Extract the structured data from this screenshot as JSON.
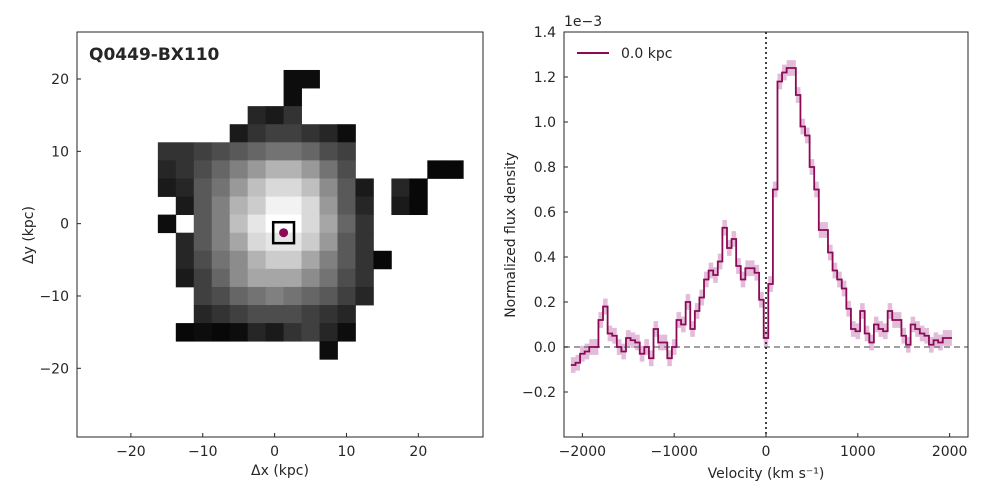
{
  "colors": {
    "accent": "#8a0a55",
    "band": "#d9a5cc",
    "zero_line": "#808080",
    "axis": "#262626"
  },
  "chart_data": [
    {
      "type": "heatmap",
      "title": "Q0449-BX110",
      "xlabel": "Δx (kpc)",
      "ylabel": "Δy (kpc)",
      "xlim": [
        -27.5,
        29
      ],
      "ylim": [
        -29.5,
        26.5
      ],
      "xticks": [
        -20,
        -10,
        0,
        10,
        20
      ],
      "yticks": [
        -20,
        -10,
        0,
        10,
        20
      ],
      "xtick_labels": [
        "−20",
        "−10",
        "0",
        "10",
        "20"
      ],
      "ytick_labels": [
        "−20",
        "−10",
        "0",
        "10",
        "20"
      ],
      "pixel_size_kpc": 2.5,
      "colormap": "gray",
      "cells": [
        {
          "x": 2.5,
          "y": 20,
          "v": 0.05
        },
        {
          "x": 5,
          "y": 20,
          "v": 0.05
        },
        {
          "x": 2.5,
          "y": 17.5,
          "v": 0.05
        },
        {
          "x": -2.5,
          "y": 15,
          "v": 0.15
        },
        {
          "x": 0,
          "y": 15,
          "v": 0.1
        },
        {
          "x": 2.5,
          "y": 15,
          "v": 0.2
        },
        {
          "x": -5,
          "y": 12.5,
          "v": 0.1
        },
        {
          "x": -2.5,
          "y": 12.5,
          "v": 0.2
        },
        {
          "x": 0,
          "y": 12.5,
          "v": 0.25
        },
        {
          "x": 2.5,
          "y": 12.5,
          "v": 0.25
        },
        {
          "x": 5,
          "y": 12.5,
          "v": 0.2
        },
        {
          "x": 7.5,
          "y": 12.5,
          "v": 0.15
        },
        {
          "x": 10,
          "y": 12.5,
          "v": 0.05
        },
        {
          "x": -15,
          "y": 10,
          "v": 0.2
        },
        {
          "x": -12.5,
          "y": 10,
          "v": 0.2
        },
        {
          "x": -10,
          "y": 10,
          "v": 0.25
        },
        {
          "x": -7.5,
          "y": 10,
          "v": 0.3
        },
        {
          "x": -5,
          "y": 10,
          "v": 0.35
        },
        {
          "x": -2.5,
          "y": 10,
          "v": 0.4
        },
        {
          "x": 0,
          "y": 10,
          "v": 0.45
        },
        {
          "x": 2.5,
          "y": 10,
          "v": 0.45
        },
        {
          "x": 5,
          "y": 10,
          "v": 0.4
        },
        {
          "x": 7.5,
          "y": 10,
          "v": 0.3
        },
        {
          "x": 10,
          "y": 10,
          "v": 0.25
        },
        {
          "x": -15,
          "y": 7.5,
          "v": 0.15
        },
        {
          "x": -12.5,
          "y": 7.5,
          "v": 0.2
        },
        {
          "x": -10,
          "y": 7.5,
          "v": 0.3
        },
        {
          "x": -7.5,
          "y": 7.5,
          "v": 0.4
        },
        {
          "x": -5,
          "y": 7.5,
          "v": 0.5
        },
        {
          "x": -2.5,
          "y": 7.5,
          "v": 0.6
        },
        {
          "x": 0,
          "y": 7.5,
          "v": 0.7
        },
        {
          "x": 2.5,
          "y": 7.5,
          "v": 0.7
        },
        {
          "x": 5,
          "y": 7.5,
          "v": 0.6
        },
        {
          "x": 7.5,
          "y": 7.5,
          "v": 0.45
        },
        {
          "x": 10,
          "y": 7.5,
          "v": 0.3
        },
        {
          "x": 22.5,
          "y": 7.5,
          "v": 0.03
        },
        {
          "x": 25,
          "y": 7.5,
          "v": 0.03
        },
        {
          "x": -15,
          "y": 5,
          "v": 0.1
        },
        {
          "x": -12.5,
          "y": 5,
          "v": 0.15
        },
        {
          "x": -10,
          "y": 5,
          "v": 0.35
        },
        {
          "x": -7.5,
          "y": 5,
          "v": 0.45
        },
        {
          "x": -5,
          "y": 5,
          "v": 0.6
        },
        {
          "x": -2.5,
          "y": 5,
          "v": 0.75
        },
        {
          "x": 0,
          "y": 5,
          "v": 0.85
        },
        {
          "x": 2.5,
          "y": 5,
          "v": 0.85
        },
        {
          "x": 5,
          "y": 5,
          "v": 0.75
        },
        {
          "x": 7.5,
          "y": 5,
          "v": 0.55
        },
        {
          "x": 10,
          "y": 5,
          "v": 0.35
        },
        {
          "x": 12.5,
          "y": 5,
          "v": 0.1
        },
        {
          "x": 17.5,
          "y": 5,
          "v": 0.15
        },
        {
          "x": 20,
          "y": 5,
          "v": 0.03
        },
        {
          "x": -12.5,
          "y": 2.5,
          "v": 0.1
        },
        {
          "x": -10,
          "y": 2.5,
          "v": 0.35
        },
        {
          "x": -7.5,
          "y": 2.5,
          "v": 0.5
        },
        {
          "x": -5,
          "y": 2.5,
          "v": 0.7
        },
        {
          "x": -2.5,
          "y": 2.5,
          "v": 0.8
        },
        {
          "x": 0,
          "y": 2.5,
          "v": 0.95
        },
        {
          "x": 2.5,
          "y": 2.5,
          "v": 0.95
        },
        {
          "x": 5,
          "y": 2.5,
          "v": 0.85
        },
        {
          "x": 7.5,
          "y": 2.5,
          "v": 0.6
        },
        {
          "x": 10,
          "y": 2.5,
          "v": 0.35
        },
        {
          "x": 12.5,
          "y": 2.5,
          "v": 0.15
        },
        {
          "x": 17.5,
          "y": 2.5,
          "v": 0.1
        },
        {
          "x": 20,
          "y": 2.5,
          "v": 0.03
        },
        {
          "x": -15,
          "y": 0,
          "v": 0.05
        },
        {
          "x": -10,
          "y": 0,
          "v": 0.35
        },
        {
          "x": -7.5,
          "y": 0,
          "v": 0.5
        },
        {
          "x": -5,
          "y": 0,
          "v": 0.75
        },
        {
          "x": -2.5,
          "y": 0,
          "v": 0.9
        },
        {
          "x": 0,
          "y": 0,
          "v": 1.0
        },
        {
          "x": 2.5,
          "y": 0,
          "v": 1.0
        },
        {
          "x": 5,
          "y": 0,
          "v": 0.85
        },
        {
          "x": 7.5,
          "y": 0,
          "v": 0.65
        },
        {
          "x": 10,
          "y": 0,
          "v": 0.4
        },
        {
          "x": 12.5,
          "y": 0,
          "v": 0.2
        },
        {
          "x": -12.5,
          "y": -2.5,
          "v": 0.15
        },
        {
          "x": -10,
          "y": -2.5,
          "v": 0.35
        },
        {
          "x": -7.5,
          "y": -2.5,
          "v": 0.5
        },
        {
          "x": -5,
          "y": -2.5,
          "v": 0.65
        },
        {
          "x": -2.5,
          "y": -2.5,
          "v": 0.85
        },
        {
          "x": 0,
          "y": -2.5,
          "v": 0.9
        },
        {
          "x": 2.5,
          "y": -2.5,
          "v": 0.9
        },
        {
          "x": 5,
          "y": -2.5,
          "v": 0.8
        },
        {
          "x": 7.5,
          "y": -2.5,
          "v": 0.6
        },
        {
          "x": 10,
          "y": -2.5,
          "v": 0.35
        },
        {
          "x": 12.5,
          "y": -2.5,
          "v": 0.2
        },
        {
          "x": -12.5,
          "y": -5,
          "v": 0.15
        },
        {
          "x": -10,
          "y": -5,
          "v": 0.3
        },
        {
          "x": -7.5,
          "y": -5,
          "v": 0.45
        },
        {
          "x": -5,
          "y": -5,
          "v": 0.55
        },
        {
          "x": -2.5,
          "y": -5,
          "v": 0.7
        },
        {
          "x": 0,
          "y": -5,
          "v": 0.8
        },
        {
          "x": 2.5,
          "y": -5,
          "v": 0.8
        },
        {
          "x": 5,
          "y": -5,
          "v": 0.65
        },
        {
          "x": 7.5,
          "y": -5,
          "v": 0.5
        },
        {
          "x": 10,
          "y": -5,
          "v": 0.35
        },
        {
          "x": 12.5,
          "y": -5,
          "v": 0.2
        },
        {
          "x": 15,
          "y": -5,
          "v": 0.03
        },
        {
          "x": -12.5,
          "y": -7.5,
          "v": 0.1
        },
        {
          "x": -10,
          "y": -7.5,
          "v": 0.25
        },
        {
          "x": -7.5,
          "y": -7.5,
          "v": 0.4
        },
        {
          "x": -5,
          "y": -7.5,
          "v": 0.55
        },
        {
          "x": -2.5,
          "y": -7.5,
          "v": 0.65
        },
        {
          "x": 0,
          "y": -7.5,
          "v": 0.65
        },
        {
          "x": 2.5,
          "y": -7.5,
          "v": 0.65
        },
        {
          "x": 5,
          "y": -7.5,
          "v": 0.55
        },
        {
          "x": 7.5,
          "y": -7.5,
          "v": 0.45
        },
        {
          "x": 10,
          "y": -7.5,
          "v": 0.3
        },
        {
          "x": 12.5,
          "y": -7.5,
          "v": 0.2
        },
        {
          "x": -10,
          "y": -10,
          "v": 0.25
        },
        {
          "x": -7.5,
          "y": -10,
          "v": 0.3
        },
        {
          "x": -5,
          "y": -10,
          "v": 0.4
        },
        {
          "x": -2.5,
          "y": -10,
          "v": 0.45
        },
        {
          "x": 0,
          "y": -10,
          "v": 0.5
        },
        {
          "x": 2.5,
          "y": -10,
          "v": 0.45
        },
        {
          "x": 5,
          "y": -10,
          "v": 0.4
        },
        {
          "x": 7.5,
          "y": -10,
          "v": 0.35
        },
        {
          "x": 10,
          "y": -10,
          "v": 0.25
        },
        {
          "x": 12.5,
          "y": -10,
          "v": 0.15
        },
        {
          "x": -10,
          "y": -12.5,
          "v": 0.15
        },
        {
          "x": -7.5,
          "y": -12.5,
          "v": 0.2
        },
        {
          "x": -5,
          "y": -12.5,
          "v": 0.25
        },
        {
          "x": -2.5,
          "y": -12.5,
          "v": 0.3
        },
        {
          "x": 0,
          "y": -12.5,
          "v": 0.3
        },
        {
          "x": 2.5,
          "y": -12.5,
          "v": 0.3
        },
        {
          "x": 5,
          "y": -12.5,
          "v": 0.25
        },
        {
          "x": 7.5,
          "y": -12.5,
          "v": 0.2
        },
        {
          "x": 10,
          "y": -12.5,
          "v": 0.15
        },
        {
          "x": -12.5,
          "y": -15,
          "v": 0.03
        },
        {
          "x": -10,
          "y": -15,
          "v": 0.05
        },
        {
          "x": -7.5,
          "y": -15,
          "v": 0.03
        },
        {
          "x": -5,
          "y": -15,
          "v": 0.05
        },
        {
          "x": -2.5,
          "y": -15,
          "v": 0.15
        },
        {
          "x": 0,
          "y": -15,
          "v": 0.1
        },
        {
          "x": 2.5,
          "y": -15,
          "v": 0.2
        },
        {
          "x": 5,
          "y": -15,
          "v": 0.25
        },
        {
          "x": 7.5,
          "y": -15,
          "v": 0.15
        },
        {
          "x": 10,
          "y": -15,
          "v": 0.05
        },
        {
          "x": 7.5,
          "y": -17.5,
          "v": 0.05
        }
      ],
      "aperture": {
        "x": 1.25,
        "y": -1.25,
        "half_width": 1.25
      },
      "marker": {
        "x": 1.25,
        "y": -1.25
      }
    },
    {
      "type": "line",
      "xlabel": "Velocity (km s⁻¹)",
      "ylabel": "Normalized flux density",
      "offset_text": "1e−3",
      "xlim": [
        -2200,
        2200
      ],
      "ylim": [
        -0.4,
        1.4
      ],
      "xticks": [
        -2000,
        -1000,
        0,
        1000,
        2000
      ],
      "xtick_labels": [
        "−2000",
        "−1000",
        "0",
        "1000",
        "2000"
      ],
      "yticks": [
        -0.2,
        0.0,
        0.2,
        0.4,
        0.6,
        0.8,
        1.0,
        1.2,
        1.4
      ],
      "ytick_labels": [
        "−0.2",
        "0.0",
        "0.2",
        "0.4",
        "0.6",
        "0.8",
        "1.0",
        "1.2",
        "1.4"
      ],
      "vline_x": 0,
      "hline_y": 0,
      "series": [
        {
          "name": "0.0 kpc",
          "x": [
            -2100,
            -2050,
            -2000,
            -1950,
            -1900,
            -1850,
            -1800,
            -1750,
            -1700,
            -1650,
            -1600,
            -1550,
            -1500,
            -1450,
            -1400,
            -1350,
            -1300,
            -1250,
            -1200,
            -1150,
            -1100,
            -1050,
            -1000,
            -950,
            -900,
            -850,
            -800,
            -750,
            -700,
            -650,
            -600,
            -550,
            -500,
            -450,
            -400,
            -350,
            -300,
            -250,
            -200,
            -150,
            -100,
            -50,
            0,
            50,
            100,
            150,
            200,
            250,
            300,
            350,
            400,
            450,
            500,
            550,
            600,
            650,
            700,
            750,
            800,
            850,
            900,
            950,
            1000,
            1050,
            1100,
            1150,
            1200,
            1250,
            1300,
            1350,
            1400,
            1450,
            1500,
            1550,
            1600,
            1650,
            1700,
            1750,
            1800,
            1850,
            1900,
            1950,
            2000
          ],
          "y": [
            -0.08,
            -0.07,
            -0.03,
            -0.02,
            0.0,
            0.0,
            0.12,
            0.18,
            0.06,
            0.05,
            0.0,
            -0.02,
            0.04,
            0.03,
            0.02,
            -0.03,
            0.0,
            -0.05,
            0.08,
            0.02,
            0.02,
            -0.05,
            0.0,
            0.12,
            0.1,
            0.2,
            0.08,
            0.16,
            0.22,
            0.3,
            0.34,
            0.32,
            0.38,
            0.53,
            0.44,
            0.48,
            0.36,
            0.3,
            0.35,
            0.35,
            0.33,
            0.21,
            0.04,
            0.28,
            0.7,
            1.18,
            1.22,
            1.24,
            1.24,
            1.12,
            0.98,
            0.94,
            0.8,
            0.7,
            0.52,
            0.52,
            0.42,
            0.34,
            0.3,
            0.26,
            0.17,
            0.08,
            0.07,
            0.16,
            0.06,
            0.02,
            0.1,
            0.08,
            0.07,
            0.16,
            0.12,
            0.12,
            0.05,
            0.01,
            0.1,
            0.08,
            0.06,
            0.05,
            0.01,
            0.03,
            0.02,
            0.04,
            0.04
          ],
          "err": 0.035
        }
      ],
      "legend_loc": "upper-left"
    }
  ]
}
